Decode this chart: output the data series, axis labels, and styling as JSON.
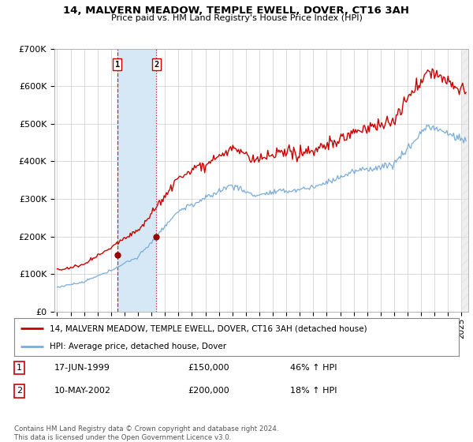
{
  "title": "14, MALVERN MEADOW, TEMPLE EWELL, DOVER, CT16 3AH",
  "subtitle": "Price paid vs. HM Land Registry's House Price Index (HPI)",
  "ylabel_ticks": [
    "£0",
    "£100K",
    "£200K",
    "£300K",
    "£400K",
    "£500K",
    "£600K",
    "£700K"
  ],
  "ylim": [
    0,
    700000
  ],
  "xlim_start": 1994.8,
  "xlim_end": 2025.5,
  "sale1_date": 1999.46,
  "sale1_price": 150000,
  "sale1_label": "1",
  "sale2_date": 2002.36,
  "sale2_price": 200000,
  "sale2_label": "2",
  "line_color_property": "#cc0000",
  "line_color_hpi": "#7aaddb",
  "shade_color": "#d6e8f5",
  "marker_color": "#990000",
  "legend_property": "14, MALVERN MEADOW, TEMPLE EWELL, DOVER, CT16 3AH (detached house)",
  "legend_hpi": "HPI: Average price, detached house, Dover",
  "table_row1": [
    "1",
    "17-JUN-1999",
    "£150,000",
    "46% ↑ HPI"
  ],
  "table_row2": [
    "2",
    "10-MAY-2002",
    "£200,000",
    "18% ↑ HPI"
  ],
  "footnote": "Contains HM Land Registry data © Crown copyright and database right 2024.\nThis data is licensed under the Open Government Licence v3.0.",
  "background_color": "#ffffff",
  "grid_color": "#cccccc"
}
